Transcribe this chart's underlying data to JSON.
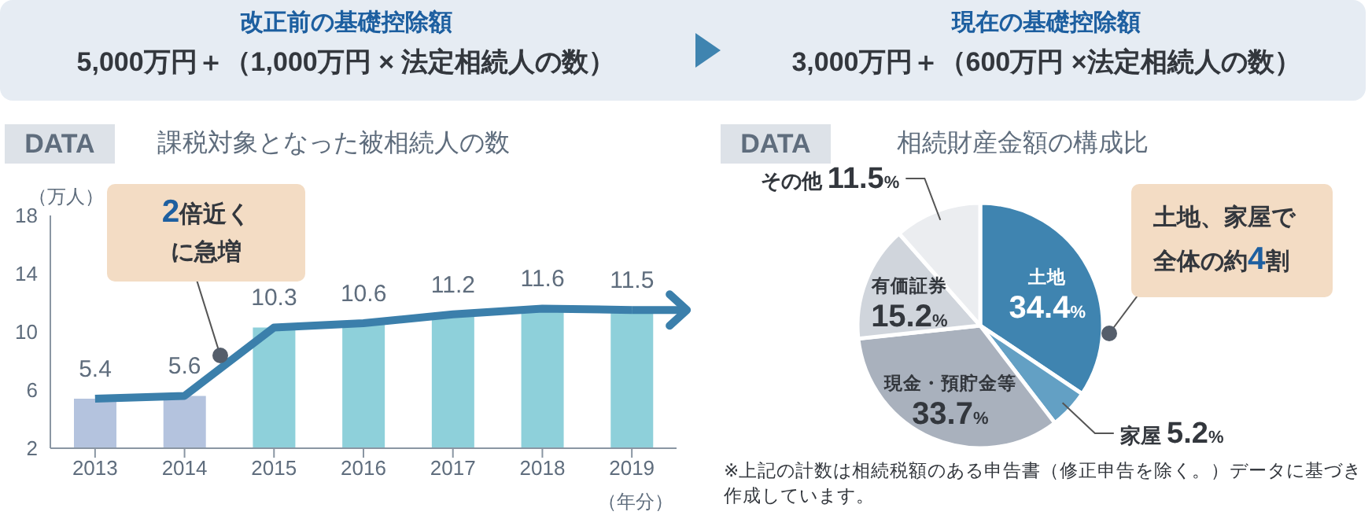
{
  "chart_data": [
    {
      "type": "other",
      "annotations": [
        "改正前の基礎控除額",
        "5,000万円＋（1,000万円 × 法定相続人の数）",
        "現在の基礎控除額",
        "3,000万円＋（600万円 ×法定相続人の数）"
      ]
    },
    {
      "type": "bar",
      "title": "課税対象となった被相続人の数",
      "ylabel": "（万人）",
      "xlabel": "（年分）",
      "categories": [
        "2013",
        "2014",
        "2015",
        "2016",
        "2017",
        "2018",
        "2019"
      ],
      "series": [
        {
          "type": "bar",
          "colors": [
            "#b4c3de",
            "#b4c3de",
            "#8ed0da",
            "#8ed0da",
            "#8ed0da",
            "#8ed0da",
            "#8ed0da"
          ],
          "values": [
            5.4,
            5.6,
            10.3,
            10.6,
            11.2,
            11.6,
            11.5
          ],
          "value_labels": [
            "5.4",
            "5.6",
            "10.3",
            "10.6",
            "11.2",
            "11.6",
            "11.5"
          ]
        },
        {
          "type": "line",
          "color": "#3b7fab",
          "values": [
            5.4,
            5.6,
            10.3,
            10.6,
            11.2,
            11.6,
            11.5
          ]
        }
      ],
      "ylim": [
        2,
        18
      ],
      "yticks": [
        2,
        6,
        10,
        14,
        18
      ],
      "grid": false,
      "legend": false,
      "marker": "none",
      "annotations": [
        "DATA",
        "2倍近くに急増"
      ]
    },
    {
      "type": "pie",
      "title": "相続財産金額の構成比",
      "categories": [
        "土地",
        "家屋",
        "現金・預貯金等",
        "有価証券",
        "その他"
      ],
      "values": [
        34.4,
        5.2,
        33.7,
        15.2,
        11.5
      ],
      "colors": [
        "#3f84b0",
        "#63a0c4",
        "#a9b1bd",
        "#d0d5dc",
        "#ebedf0"
      ],
      "value_labels": [
        "34.4%",
        "5.2%",
        "33.7%",
        "15.2%",
        "11.5%"
      ],
      "legend": false,
      "annotations": [
        "DATA",
        "土地、家屋で全体の約4割",
        "※上記の計数は相続税額のある申告書（修正申告を除く。）データに基づき作成しています。"
      ]
    }
  ]
}
